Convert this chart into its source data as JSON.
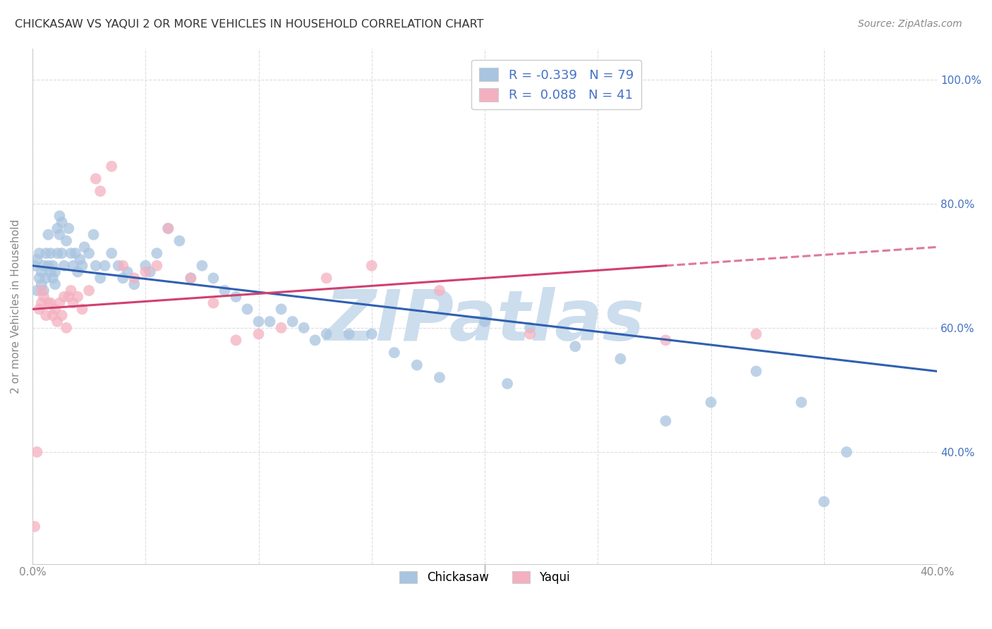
{
  "title": "CHICKASAW VS YAQUI 2 OR MORE VEHICLES IN HOUSEHOLD CORRELATION CHART",
  "source": "Source: ZipAtlas.com",
  "ylabel": "2 or more Vehicles in Household",
  "legend_labels": [
    "Chickasaw",
    "Yaqui"
  ],
  "legend_r_values": [
    "-0.339",
    "0.088"
  ],
  "legend_n_values": [
    "79",
    "41"
  ],
  "chickasaw_color": "#a8c4e0",
  "yaqui_color": "#f4b0c0",
  "chickasaw_line_color": "#3060b0",
  "yaqui_line_color": "#d04070",
  "x_min": 0.0,
  "x_max": 0.4,
  "y_min": 0.22,
  "y_max": 1.05,
  "y_ticks": [
    0.4,
    0.6,
    0.8,
    1.0
  ],
  "y_tick_labels": [
    "40.0%",
    "60.0%",
    "80.0%",
    "100.0%"
  ],
  "watermark": "ZIPatlas",
  "watermark_color": "#ccdded",
  "background_color": "#ffffff",
  "grid_color": "#dddddd",
  "chick_line_x0": 0.0,
  "chick_line_y0": 0.7,
  "chick_line_x1": 0.4,
  "chick_line_y1": 0.53,
  "yaqui_line_x0": 0.0,
  "yaqui_line_y0": 0.63,
  "yaqui_line_x1": 0.4,
  "yaqui_line_y1": 0.73,
  "chickasaw_x": [
    0.001,
    0.002,
    0.002,
    0.003,
    0.003,
    0.004,
    0.004,
    0.005,
    0.005,
    0.006,
    0.006,
    0.007,
    0.007,
    0.008,
    0.008,
    0.009,
    0.009,
    0.01,
    0.01,
    0.011,
    0.011,
    0.012,
    0.012,
    0.013,
    0.013,
    0.014,
    0.015,
    0.016,
    0.017,
    0.018,
    0.019,
    0.02,
    0.021,
    0.022,
    0.023,
    0.025,
    0.027,
    0.028,
    0.03,
    0.032,
    0.035,
    0.038,
    0.04,
    0.042,
    0.045,
    0.05,
    0.052,
    0.055,
    0.06,
    0.065,
    0.07,
    0.075,
    0.08,
    0.085,
    0.09,
    0.095,
    0.1,
    0.105,
    0.11,
    0.115,
    0.12,
    0.125,
    0.13,
    0.14,
    0.15,
    0.16,
    0.17,
    0.18,
    0.2,
    0.21,
    0.22,
    0.24,
    0.26,
    0.28,
    0.3,
    0.32,
    0.34,
    0.35,
    0.36
  ],
  "chickasaw_y": [
    0.7,
    0.66,
    0.71,
    0.68,
    0.72,
    0.67,
    0.69,
    0.66,
    0.7,
    0.68,
    0.72,
    0.7,
    0.75,
    0.69,
    0.72,
    0.68,
    0.7,
    0.67,
    0.69,
    0.72,
    0.76,
    0.75,
    0.78,
    0.77,
    0.72,
    0.7,
    0.74,
    0.76,
    0.72,
    0.7,
    0.72,
    0.69,
    0.71,
    0.7,
    0.73,
    0.72,
    0.75,
    0.7,
    0.68,
    0.7,
    0.72,
    0.7,
    0.68,
    0.69,
    0.67,
    0.7,
    0.69,
    0.72,
    0.76,
    0.74,
    0.68,
    0.7,
    0.68,
    0.66,
    0.65,
    0.63,
    0.61,
    0.61,
    0.63,
    0.61,
    0.6,
    0.58,
    0.59,
    0.59,
    0.59,
    0.56,
    0.54,
    0.52,
    0.61,
    0.51,
    0.6,
    0.57,
    0.55,
    0.45,
    0.48,
    0.53,
    0.48,
    0.32,
    0.4
  ],
  "yaqui_x": [
    0.001,
    0.002,
    0.003,
    0.004,
    0.004,
    0.005,
    0.006,
    0.007,
    0.008,
    0.009,
    0.01,
    0.011,
    0.012,
    0.013,
    0.014,
    0.015,
    0.016,
    0.017,
    0.018,
    0.02,
    0.022,
    0.025,
    0.028,
    0.03,
    0.035,
    0.04,
    0.045,
    0.05,
    0.055,
    0.06,
    0.07,
    0.08,
    0.09,
    0.1,
    0.11,
    0.13,
    0.15,
    0.18,
    0.22,
    0.28,
    0.32
  ],
  "yaqui_y": [
    0.28,
    0.4,
    0.63,
    0.66,
    0.64,
    0.65,
    0.62,
    0.64,
    0.64,
    0.62,
    0.63,
    0.61,
    0.64,
    0.62,
    0.65,
    0.6,
    0.65,
    0.66,
    0.64,
    0.65,
    0.63,
    0.66,
    0.84,
    0.82,
    0.86,
    0.7,
    0.68,
    0.69,
    0.7,
    0.76,
    0.68,
    0.64,
    0.58,
    0.59,
    0.6,
    0.68,
    0.7,
    0.66,
    0.59,
    0.58,
    0.59
  ]
}
